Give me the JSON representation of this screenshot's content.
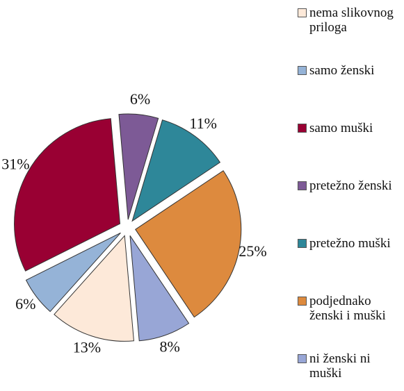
{
  "chart_data": {
    "type": "pie",
    "categories": [
      "nema slikovnog priloga",
      "samo ženski",
      "samo muški",
      "pretežno ženski",
      "pretežno muški",
      "podjednako ženski i muški",
      "ni ženski ni muški"
    ],
    "values": [
      13,
      6,
      31,
      6,
      11,
      25,
      8
    ],
    "value_labels": [
      "13%",
      "6%",
      "31%",
      "6%",
      "11%",
      "25%",
      "8%"
    ],
    "colors": [
      "#fde9d9",
      "#95b3d7",
      "#990033",
      "#7d5a96",
      "#2e8799",
      "#dd8a3e",
      "#98a6d6"
    ],
    "legend": "right"
  }
}
